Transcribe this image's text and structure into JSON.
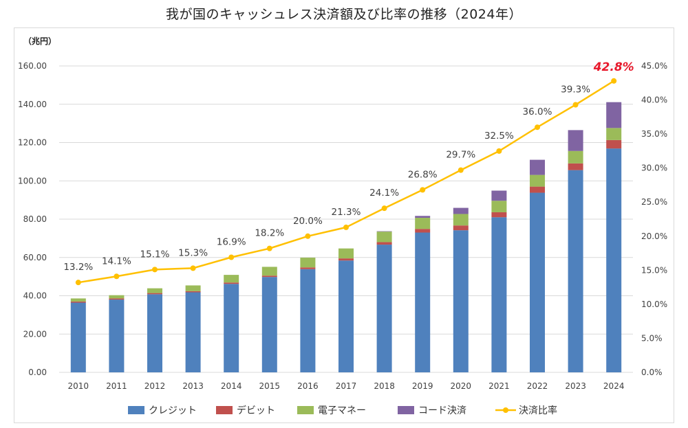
{
  "title": "我が国のキャッシュレス決済額及び比率の推移（2024年）",
  "chart_data": {
    "type": "bar",
    "stacked": true,
    "categories": [
      "2010",
      "2011",
      "2012",
      "2013",
      "2014",
      "2015",
      "2016",
      "2017",
      "2018",
      "2019",
      "2020",
      "2021",
      "2022",
      "2023",
      "2024"
    ],
    "y_unit_label": "（兆円）",
    "ylim": [
      0,
      160
    ],
    "yticks": [
      "0.00",
      "20.00",
      "40.00",
      "60.00",
      "80.00",
      "100.00",
      "120.00",
      "140.00",
      "160.00"
    ],
    "y2lim": [
      0,
      45
    ],
    "y2ticks": [
      "0.0%",
      "5.0%",
      "10.0%",
      "15.0%",
      "20.0%",
      "25.0%",
      "30.0%",
      "35.0%",
      "40.0%",
      "45.0%"
    ],
    "series": [
      {
        "name": "クレジット",
        "color": "#4f81bd",
        "values": [
          36.4,
          38.0,
          40.8,
          41.8,
          46.2,
          49.8,
          53.9,
          58.4,
          66.7,
          73.0,
          74.2,
          81.0,
          93.8,
          105.6,
          116.9
        ]
      },
      {
        "name": "デビット",
        "color": "#c0504d",
        "values": [
          0.6,
          0.6,
          0.6,
          0.6,
          0.7,
          0.7,
          0.9,
          1.1,
          1.3,
          1.9,
          2.5,
          2.6,
          3.2,
          3.5,
          4.4
        ]
      },
      {
        "name": "電子マネー",
        "color": "#9bbb59",
        "values": [
          1.6,
          1.7,
          2.5,
          3.0,
          4.0,
          4.6,
          5.1,
          5.2,
          5.5,
          5.8,
          6.0,
          6.0,
          6.1,
          6.5,
          6.3
        ]
      },
      {
        "name": "コード決済",
        "color": "#8064a2",
        "values": [
          0,
          0,
          0,
          0,
          0,
          0,
          0,
          0,
          0.2,
          1.0,
          3.2,
          5.3,
          7.9,
          10.9,
          13.5
        ]
      }
    ],
    "ratio_series": {
      "name": "決済比率",
      "color": "#ffc000",
      "values": [
        13.2,
        14.1,
        15.1,
        15.3,
        16.9,
        18.2,
        20.0,
        21.3,
        24.1,
        26.8,
        29.7,
        32.5,
        36.0,
        39.3,
        42.8
      ],
      "labels": [
        "13.2%",
        "14.1%",
        "15.1%",
        "15.3%",
        "16.9%",
        "18.2%",
        "20.0%",
        "21.3%",
        "24.1%",
        "26.8%",
        "29.7%",
        "32.5%",
        "36.0%",
        "39.3%",
        "42.8%"
      ],
      "highlight_color": "#e8192c"
    },
    "legend_position": "bottom",
    "grid": true
  }
}
